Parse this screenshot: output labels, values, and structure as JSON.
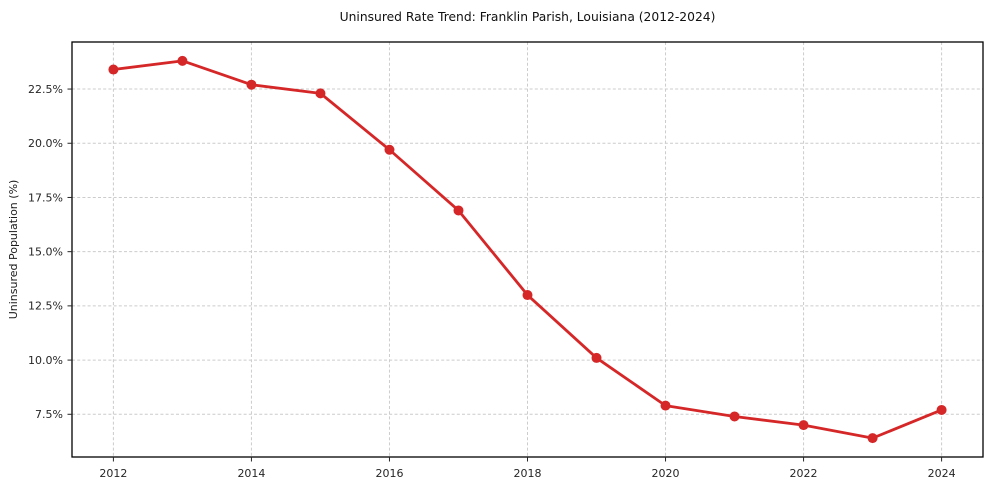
{
  "chart_data": {
    "type": "line",
    "title": "Uninsured Rate Trend: Franklin Parish, Louisiana (2012-2024)",
    "xlabel": "",
    "ylabel": "Uninsured Population (%)",
    "x": [
      2012,
      2013,
      2014,
      2015,
      2016,
      2017,
      2018,
      2019,
      2020,
      2021,
      2022,
      2023,
      2024
    ],
    "series": [
      {
        "name": "Uninsured Population (%)",
        "values": [
          23.4,
          23.8,
          22.7,
          22.3,
          19.7,
          16.9,
          13.0,
          10.1,
          7.9,
          7.4,
          7.0,
          6.4,
          7.7
        ],
        "color": "#d62728",
        "marker": "circle"
      }
    ],
    "xticks": [
      2012,
      2014,
      2016,
      2018,
      2020,
      2022,
      2024
    ],
    "yticks": [
      7.5,
      10.0,
      12.5,
      15.0,
      17.5,
      20.0,
      22.5
    ],
    "ytick_suffix": "%",
    "xlim": [
      2011.4,
      2024.6
    ],
    "ylim": [
      5.53,
      24.67
    ],
    "grid": true,
    "grid_style": "dashed",
    "legend": "none",
    "colors": {
      "line": "#d62728",
      "grid": "#cccccc",
      "spine": "#000000",
      "tick": "#262626",
      "background": "#ffffff"
    }
  }
}
